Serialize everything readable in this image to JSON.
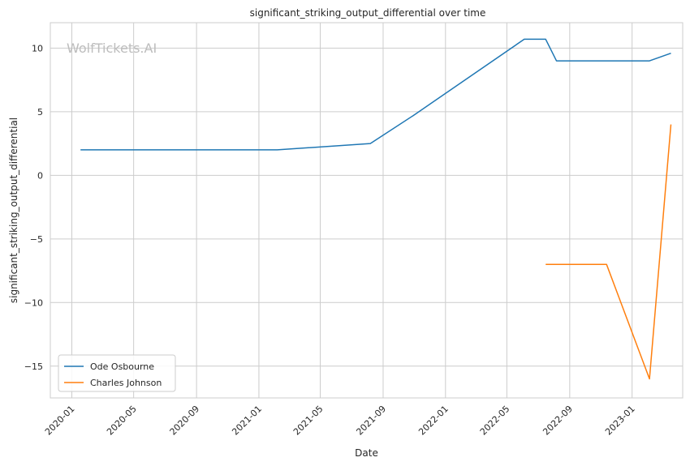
{
  "chart_data": {
    "type": "line",
    "title": "significant_striking_output_differential over time",
    "xlabel": "Date",
    "ylabel": "significant_striking_output_differential",
    "watermark": "WolfTickets.AI",
    "xlim": [
      "2019-11-20",
      "2023-04-10"
    ],
    "ylim": [
      -17.5,
      12
    ],
    "x_ticks": [
      "2020-01",
      "2020-05",
      "2020-09",
      "2021-01",
      "2021-05",
      "2021-09",
      "2022-01",
      "2022-05",
      "2022-09",
      "2023-01"
    ],
    "y_ticks": [
      10,
      5,
      0,
      -5,
      -10,
      -15
    ],
    "y_tick_labels": [
      "10",
      "5",
      "0",
      "−5",
      "−10",
      "−15"
    ],
    "grid": true,
    "legend_position": "lower-left",
    "series": [
      {
        "name": "Ode Osbourne",
        "color": "#1f77b4",
        "points": [
          {
            "x": "2020-01-18",
            "y": 2.0
          },
          {
            "x": "2021-02-06",
            "y": 2.0
          },
          {
            "x": "2021-08-07",
            "y": 2.5
          },
          {
            "x": "2021-10-30",
            "y": 4.7
          },
          {
            "x": "2022-06-04",
            "y": 10.7
          },
          {
            "x": "2022-07-16",
            "y": 10.7
          },
          {
            "x": "2022-08-06",
            "y": 9.0
          },
          {
            "x": "2023-02-04",
            "y": 9.0
          },
          {
            "x": "2023-03-18",
            "y": 9.6
          }
        ]
      },
      {
        "name": "Charles Johnson",
        "color": "#ff7f0e",
        "points": [
          {
            "x": "2022-07-16",
            "y": -7.0
          },
          {
            "x": "2022-11-12",
            "y": -7.0
          },
          {
            "x": "2023-02-04",
            "y": -16.0
          },
          {
            "x": "2023-03-18",
            "y": 4.0
          }
        ]
      }
    ]
  }
}
